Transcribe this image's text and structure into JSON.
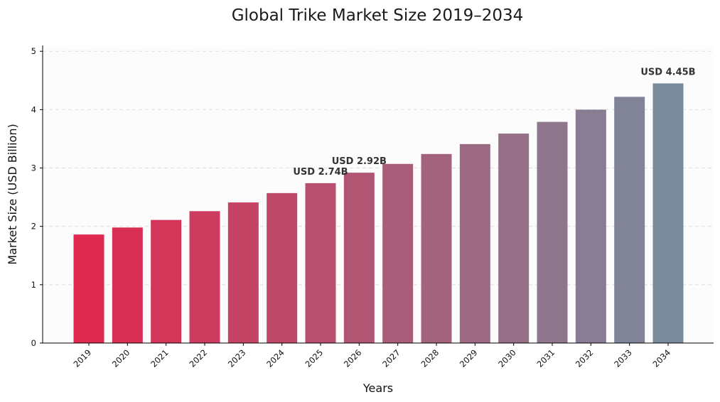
{
  "chart_data": {
    "type": "bar",
    "title": "Global Trike Market Size 2019–2034",
    "xlabel": "Years",
    "ylabel": "Market Size (USD Billion)",
    "ylim": [
      0,
      5.1
    ],
    "yticks": [
      0,
      1,
      2,
      3,
      4,
      5
    ],
    "grid": true,
    "categories": [
      "2019",
      "2020",
      "2021",
      "2022",
      "2023",
      "2024",
      "2025",
      "2026",
      "2027",
      "2028",
      "2029",
      "2030",
      "2031",
      "2032",
      "2033",
      "2034"
    ],
    "values": [
      1.86,
      1.98,
      2.11,
      2.26,
      2.41,
      2.57,
      2.74,
      2.92,
      3.07,
      3.24,
      3.41,
      3.59,
      3.79,
      4.0,
      4.22,
      4.45
    ],
    "annotations": [
      {
        "category": "2025",
        "text": "USD 2.74B"
      },
      {
        "category": "2026",
        "text": "USD 2.92B"
      },
      {
        "category": "2034",
        "text": "USD 4.45B"
      }
    ],
    "colors": {
      "start": "#e0294f",
      "end": "#7a8a9c",
      "plot_bg": "#fcfcfc"
    }
  }
}
